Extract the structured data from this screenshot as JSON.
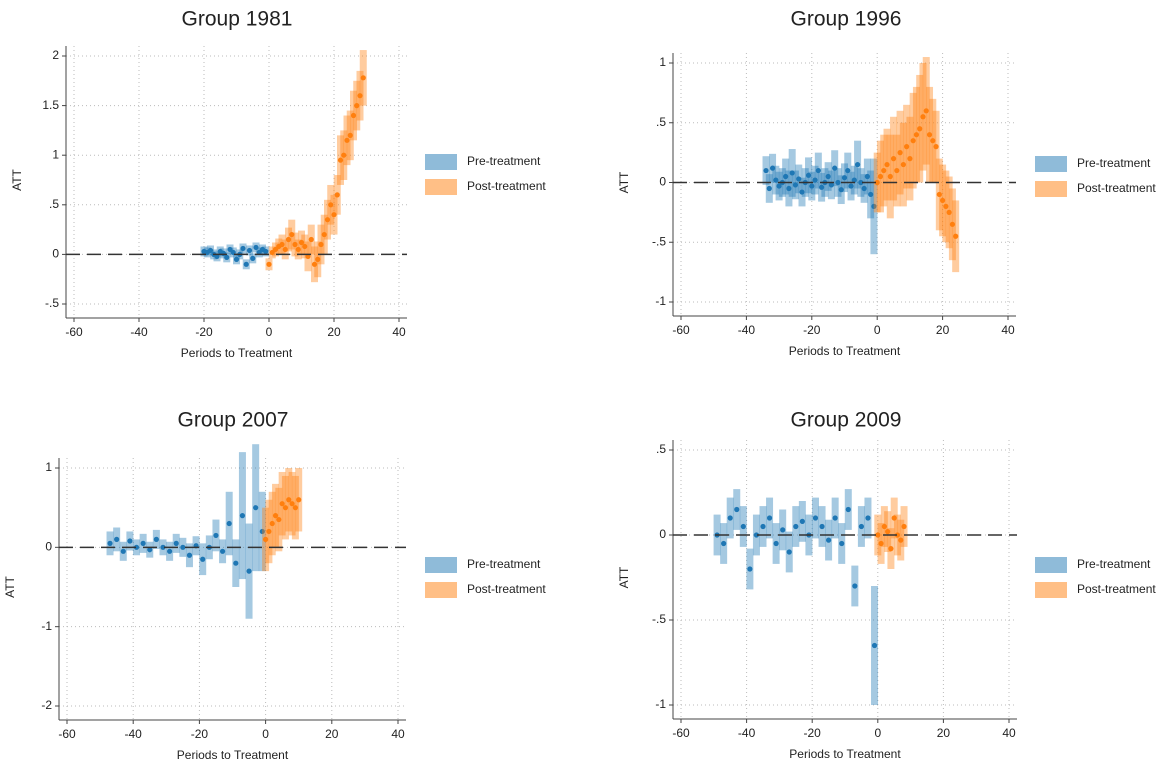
{
  "chart_data": [
    {
      "type": "errorbar",
      "title": "Group 1981",
      "xlabel": "Periods to Treatment",
      "ylabel": "ATT",
      "xlim": [
        -60,
        40
      ],
      "xticks": [
        -60,
        -40,
        -20,
        0,
        20,
        40
      ],
      "ylim": [
        -0.5,
        2
      ],
      "yticks": [
        {
          "value": -0.5,
          "label": "-.5"
        },
        0,
        {
          "value": 0.5,
          "label": ".5"
        },
        1,
        1.5,
        2
      ],
      "grid": true,
      "hline": 0,
      "legend": "right",
      "series": [
        {
          "name": "Pre-treatment",
          "color": "#1f77b4",
          "x": [
            -20,
            -19,
            -18,
            -17,
            -16,
            -15,
            -14,
            -13,
            -12,
            -11,
            -10,
            -9,
            -8,
            -7,
            -6,
            -5,
            -4,
            -3,
            -2,
            -1
          ],
          "values": [
            0.03,
            0.02,
            0.04,
            0.0,
            -0.02,
            0.03,
            0.01,
            -0.03,
            0.05,
            0.02,
            -0.05,
            0.0,
            0.06,
            -0.1,
            0.04,
            -0.04,
            0.07,
            0.02,
            0.05,
            0.03
          ],
          "errors": [
            0.05,
            0.05,
            0.05,
            0.05,
            0.05,
            0.05,
            0.05,
            0.05,
            0.05,
            0.05,
            0.05,
            0.05,
            0.05,
            0.05,
            0.05,
            0.05,
            0.05,
            0.05,
            0.05,
            0.05
          ]
        },
        {
          "name": "Post-treatment",
          "color": "#ff7f0e",
          "x": [
            0,
            1,
            2,
            3,
            4,
            5,
            6,
            7,
            8,
            9,
            10,
            11,
            12,
            13,
            14,
            15,
            16,
            17,
            18,
            19,
            20,
            21,
            22,
            23,
            24,
            25,
            26,
            27,
            28,
            29
          ],
          "values": [
            -0.1,
            0.02,
            0.05,
            0.08,
            0.1,
            0.05,
            0.15,
            0.2,
            0.1,
            0.05,
            0.12,
            0.08,
            -0.02,
            0.15,
            -0.1,
            -0.05,
            0.1,
            0.2,
            0.35,
            0.5,
            0.4,
            0.6,
            0.95,
            1.0,
            1.15,
            1.2,
            1.4,
            1.5,
            1.6,
            1.78
          ],
          "errors": [
            0.06,
            0.06,
            0.07,
            0.08,
            0.1,
            0.1,
            0.12,
            0.15,
            0.12,
            0.1,
            0.12,
            0.12,
            0.15,
            0.15,
            0.18,
            0.18,
            0.2,
            0.2,
            0.2,
            0.2,
            0.2,
            0.2,
            0.25,
            0.25,
            0.25,
            0.25,
            0.25,
            0.25,
            0.25,
            0.28
          ]
        }
      ]
    },
    {
      "type": "errorbar",
      "title": "Group 1996",
      "xlabel": "Periods to Treatment",
      "ylabel": "ATT",
      "xlim": [
        -60,
        40
      ],
      "xticks": [
        -60,
        -40,
        -20,
        0,
        20,
        40
      ],
      "ylim": [
        -1,
        1
      ],
      "yticks": [
        -1,
        {
          "value": -0.5,
          "label": "-.5"
        },
        0,
        {
          "value": 0.5,
          "label": ".5"
        },
        1
      ],
      "grid": true,
      "hline": 0,
      "legend": "right",
      "series": [
        {
          "name": "Pre-treatment",
          "color": "#1f77b4",
          "x": [
            -34,
            -33,
            -32,
            -31,
            -30,
            -29,
            -28,
            -27,
            -26,
            -25,
            -24,
            -23,
            -22,
            -21,
            -20,
            -19,
            -18,
            -17,
            -16,
            -15,
            -14,
            -13,
            -12,
            -11,
            -10,
            -9,
            -8,
            -7,
            -6,
            -5,
            -4,
            -3,
            -2,
            -1
          ],
          "values": [
            0.1,
            -0.05,
            0.12,
            0.02,
            -0.03,
            0.0,
            0.05,
            -0.05,
            0.08,
            -0.02,
            0.03,
            -0.08,
            0.0,
            0.06,
            -0.03,
            0.02,
            0.1,
            -0.04,
            0.0,
            0.05,
            -0.02,
            0.12,
            0.0,
            -0.06,
            0.04,
            0.1,
            -0.03,
            0.02,
            0.15,
            0.0,
            -0.05,
            0.05,
            -0.1,
            -0.2
          ],
          "errors": [
            0.12,
            0.12,
            0.12,
            0.12,
            0.12,
            0.12,
            0.15,
            0.15,
            0.2,
            0.12,
            0.12,
            0.12,
            0.12,
            0.15,
            0.12,
            0.12,
            0.15,
            0.12,
            0.12,
            0.12,
            0.12,
            0.15,
            0.12,
            0.12,
            0.12,
            0.15,
            0.12,
            0.12,
            0.2,
            0.12,
            0.12,
            0.15,
            0.2,
            0.4
          ]
        },
        {
          "name": "Post-treatment",
          "color": "#ff7f0e",
          "x": [
            0,
            1,
            2,
            3,
            4,
            5,
            6,
            7,
            8,
            9,
            10,
            11,
            12,
            13,
            14,
            15,
            16,
            17,
            18,
            19,
            20,
            21,
            22,
            23,
            24
          ],
          "values": [
            0.0,
            0.05,
            0.1,
            0.15,
            0.05,
            0.2,
            0.1,
            0.25,
            0.15,
            0.3,
            0.2,
            0.35,
            0.4,
            0.45,
            0.55,
            0.6,
            0.4,
            0.35,
            0.3,
            -0.1,
            -0.15,
            -0.2,
            -0.25,
            -0.35,
            -0.45
          ],
          "errors": [
            0.25,
            0.3,
            0.3,
            0.3,
            0.35,
            0.35,
            0.3,
            0.35,
            0.35,
            0.35,
            0.35,
            0.4,
            0.4,
            0.45,
            0.45,
            0.45,
            0.4,
            0.35,
            0.3,
            0.3,
            0.3,
            0.3,
            0.3,
            0.3,
            0.3
          ]
        }
      ]
    },
    {
      "type": "errorbar",
      "title": "Group 2007",
      "xlabel": "Periods to Treatment",
      "ylabel": "ATT",
      "xlim": [
        -60,
        40
      ],
      "xticks": [
        -60,
        -40,
        -20,
        0,
        20,
        40
      ],
      "ylim": [
        -2,
        1
      ],
      "yticks": [
        -2,
        -1,
        0,
        1
      ],
      "grid": true,
      "hline": 0,
      "legend": "right",
      "series": [
        {
          "name": "Pre-treatment",
          "color": "#1f77b4",
          "x": [
            -47,
            -45,
            -43,
            -41,
            -39,
            -37,
            -35,
            -33,
            -31,
            -29,
            -27,
            -25,
            -23,
            -21,
            -19,
            -17,
            -15,
            -13,
            -11,
            -9,
            -7,
            -5,
            -3,
            -1
          ],
          "values": [
            0.05,
            0.1,
            -0.05,
            0.08,
            0.0,
            0.05,
            -0.03,
            0.1,
            0.0,
            -0.05,
            0.05,
            0.0,
            -0.1,
            0.02,
            -0.15,
            0.0,
            0.15,
            -0.05,
            0.3,
            -0.2,
            0.4,
            -0.3,
            0.5,
            0.2
          ],
          "errors": [
            0.15,
            0.15,
            0.12,
            0.12,
            0.1,
            0.12,
            0.1,
            0.12,
            0.1,
            0.12,
            0.12,
            0.12,
            0.15,
            0.12,
            0.2,
            0.15,
            0.2,
            0.15,
            0.4,
            0.3,
            0.8,
            0.6,
            0.8,
            0.5
          ]
        },
        {
          "name": "Post-treatment",
          "color": "#ff7f0e",
          "x": [
            0,
            1,
            2,
            3,
            4,
            5,
            6,
            7,
            8,
            9,
            10
          ],
          "values": [
            0.1,
            0.2,
            0.3,
            0.4,
            0.35,
            0.55,
            0.5,
            0.6,
            0.55,
            0.5,
            0.6
          ],
          "errors": [
            0.4,
            0.4,
            0.4,
            0.4,
            0.4,
            0.4,
            0.4,
            0.4,
            0.4,
            0.4,
            0.4
          ]
        }
      ]
    },
    {
      "type": "errorbar",
      "title": "Group 2009",
      "xlabel": "Periods to Treatment",
      "ylabel": "ATT",
      "xlim": [
        -60,
        40
      ],
      "xticks": [
        -60,
        -40,
        -20,
        0,
        20,
        40
      ],
      "ylim": [
        -1,
        0.5
      ],
      "yticks": [
        -1,
        {
          "value": -0.5,
          "label": "-.5"
        },
        0,
        {
          "value": 0.5,
          "label": ".5"
        }
      ],
      "grid": true,
      "hline": 0,
      "legend": "right",
      "series": [
        {
          "name": "Pre-treatment",
          "color": "#1f77b4",
          "x": [
            -49,
            -47,
            -45,
            -43,
            -41,
            -39,
            -37,
            -35,
            -33,
            -31,
            -29,
            -27,
            -25,
            -23,
            -21,
            -19,
            -17,
            -15,
            -13,
            -11,
            -9,
            -7,
            -5,
            -3,
            -1
          ],
          "values": [
            0.0,
            -0.05,
            0.1,
            0.15,
            0.05,
            -0.2,
            0.0,
            0.05,
            0.1,
            -0.05,
            0.03,
            -0.1,
            0.05,
            0.08,
            0.0,
            0.1,
            0.05,
            -0.03,
            0.1,
            -0.05,
            0.15,
            -0.3,
            0.05,
            0.1,
            -0.65
          ],
          "errors": [
            0.12,
            0.12,
            0.12,
            0.12,
            0.12,
            0.12,
            0.12,
            0.12,
            0.12,
            0.12,
            0.12,
            0.12,
            0.12,
            0.12,
            0.12,
            0.12,
            0.12,
            0.12,
            0.12,
            0.12,
            0.12,
            0.12,
            0.12,
            0.12,
            0.35
          ]
        },
        {
          "name": "Post-treatment",
          "color": "#ff7f0e",
          "x": [
            0,
            1,
            2,
            3,
            4,
            5,
            6,
            7,
            8
          ],
          "values": [
            0.0,
            -0.05,
            0.05,
            0.02,
            -0.08,
            0.1,
            0.0,
            -0.03,
            0.05
          ],
          "errors": [
            0.12,
            0.12,
            0.12,
            0.12,
            0.12,
            0.12,
            0.12,
            0.12,
            0.12
          ]
        }
      ]
    }
  ]
}
